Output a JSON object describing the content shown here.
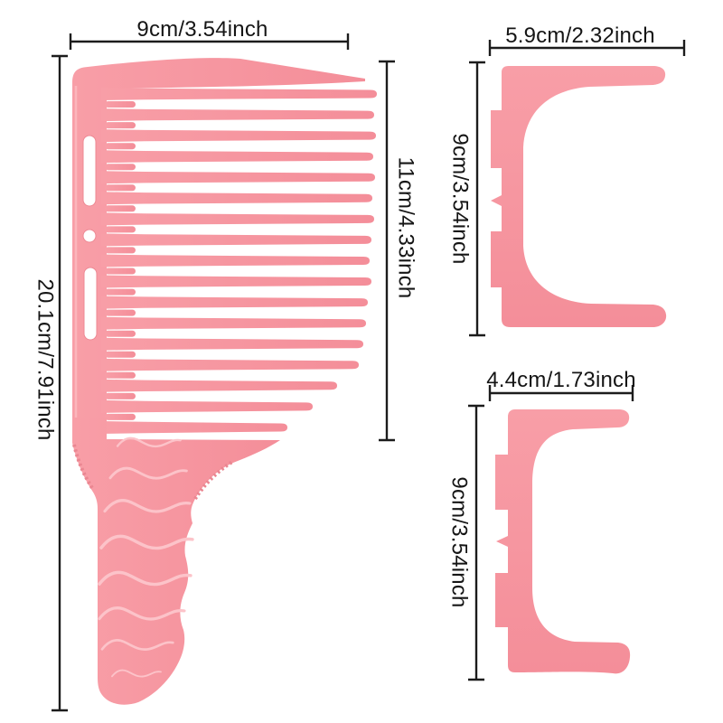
{
  "palette": {
    "comb_pink": "#f6949e",
    "comb_pink_dark": "#f28b96",
    "comb_pink_light": "#fcc3c9",
    "dimension_line": "#1c1c1c",
    "label_text": "#151515",
    "background": "#ffffff"
  },
  "comb": {
    "width_label": "9cm/3.54inch",
    "teeth_length_label": "11cm/4.33inch",
    "total_length_label": "20.1cm/7.91inch",
    "teeth_count_long": 17,
    "teeth_count_short": 16
  },
  "clip_large": {
    "width_label": "5.9cm/2.32inch",
    "height_label": "9cm/3.54inch"
  },
  "clip_small": {
    "width_label": "4.4cm/1.73inch",
    "height_label": "9cm/3.54inch"
  }
}
